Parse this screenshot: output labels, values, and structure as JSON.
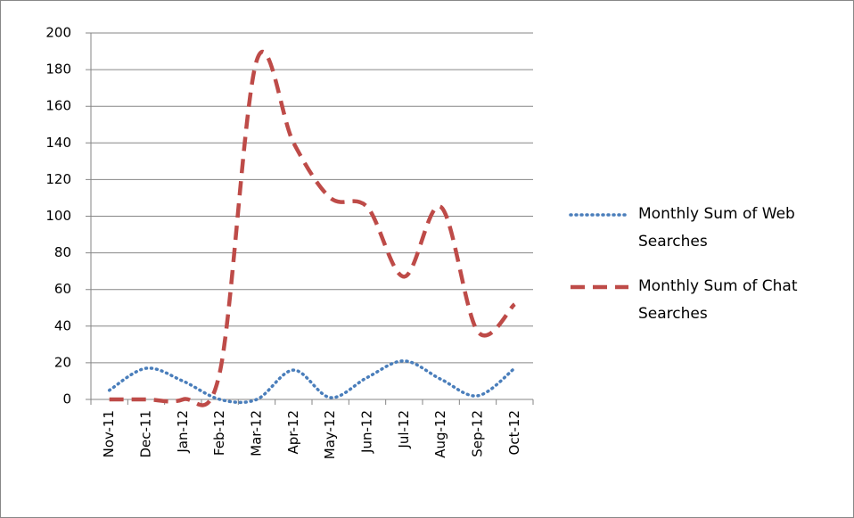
{
  "chart_data": {
    "type": "line",
    "categories": [
      "Nov-11",
      "Dec-11",
      "Jan-12",
      "Feb-12",
      "Mar-12",
      "Apr-12",
      "May-12",
      "Jun-12",
      "Jul-12",
      "Aug-12",
      "Sep-12",
      "Oct-12"
    ],
    "series": [
      {
        "name": "Monthly Sum of Web Searches",
        "color": "#4a7ebb",
        "values": [
          5,
          17,
          10,
          0,
          0,
          16,
          1,
          12,
          21,
          11,
          2,
          17
        ]
      },
      {
        "name": "Monthly Sum of Chat Searches",
        "color": "#be4b48",
        "values": [
          0,
          0,
          0,
          15,
          185,
          140,
          110,
          105,
          67,
          105,
          37,
          52
        ]
      }
    ],
    "ylim": [
      0,
      200
    ],
    "yticks": [
      0,
      20,
      40,
      60,
      80,
      100,
      120,
      140,
      160,
      180,
      200
    ],
    "grid": true,
    "legend": "right",
    "smooth": true
  }
}
